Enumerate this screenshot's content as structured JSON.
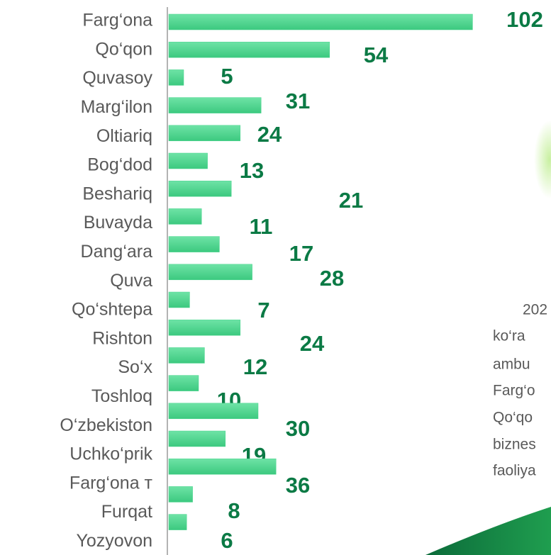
{
  "chart_data": {
    "type": "bar",
    "orientation": "horizontal",
    "categories": [
      "Farg‘ona",
      "Qo‘qon",
      "Quvasoy",
      "Marg‘ilon",
      "Oltiariq",
      "Bog‘dod",
      "Beshariq",
      "Buvayda",
      "Dang‘ara",
      "Quva",
      "Qo‘shtepa",
      "Rishton",
      "So‘x",
      "Toshloq",
      "O‘zbekiston",
      "Uchko‘prik",
      "Farg‘ona т",
      "Furqat",
      "Yozyovon"
    ],
    "values": [
      102,
      54,
      5,
      31,
      24,
      13,
      21,
      11,
      17,
      28,
      7,
      24,
      12,
      10,
      30,
      19,
      36,
      8,
      6
    ],
    "color": "#47d48c",
    "label_color": "#0b7a45",
    "annotations": [
      "202",
      "ko‘ra",
      "ambu",
      "Farg‘o",
      "Qo‘qo",
      "biznes",
      "faoliya"
    ]
  }
}
